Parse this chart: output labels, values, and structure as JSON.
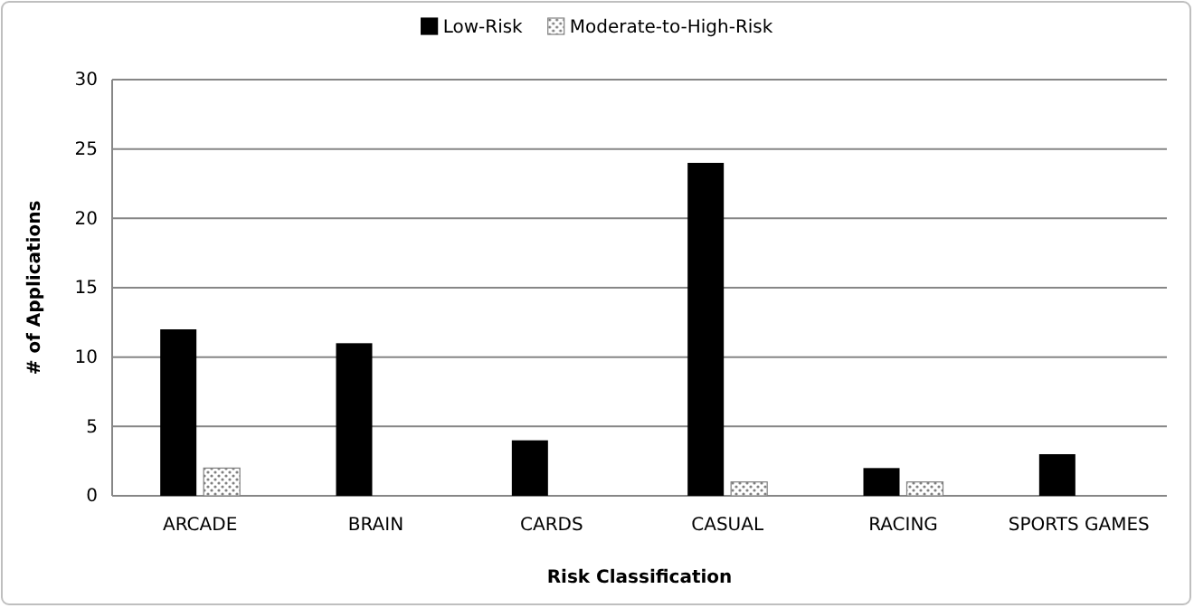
{
  "chart_data": {
    "type": "bar",
    "xlabel": "Risk Classification",
    "ylabel": "# of Applications",
    "categories": [
      "ARCADE",
      "BRAIN",
      "CARDS",
      "CASUAL",
      "RACING",
      "SPORTS  GAMES"
    ],
    "series": [
      {
        "name": "Low-Risk",
        "color": "#000000",
        "values": [
          12,
          11,
          4,
          24,
          2,
          3
        ]
      },
      {
        "name": "Moderate-to-High-Risk",
        "color": "#808080",
        "values": [
          2,
          0,
          0,
          1,
          1,
          0
        ]
      }
    ],
    "ylim": [
      0,
      30
    ],
    "yticks": [
      0,
      5,
      10,
      15,
      20,
      25,
      30
    ],
    "grid": "y",
    "legend": "top"
  }
}
